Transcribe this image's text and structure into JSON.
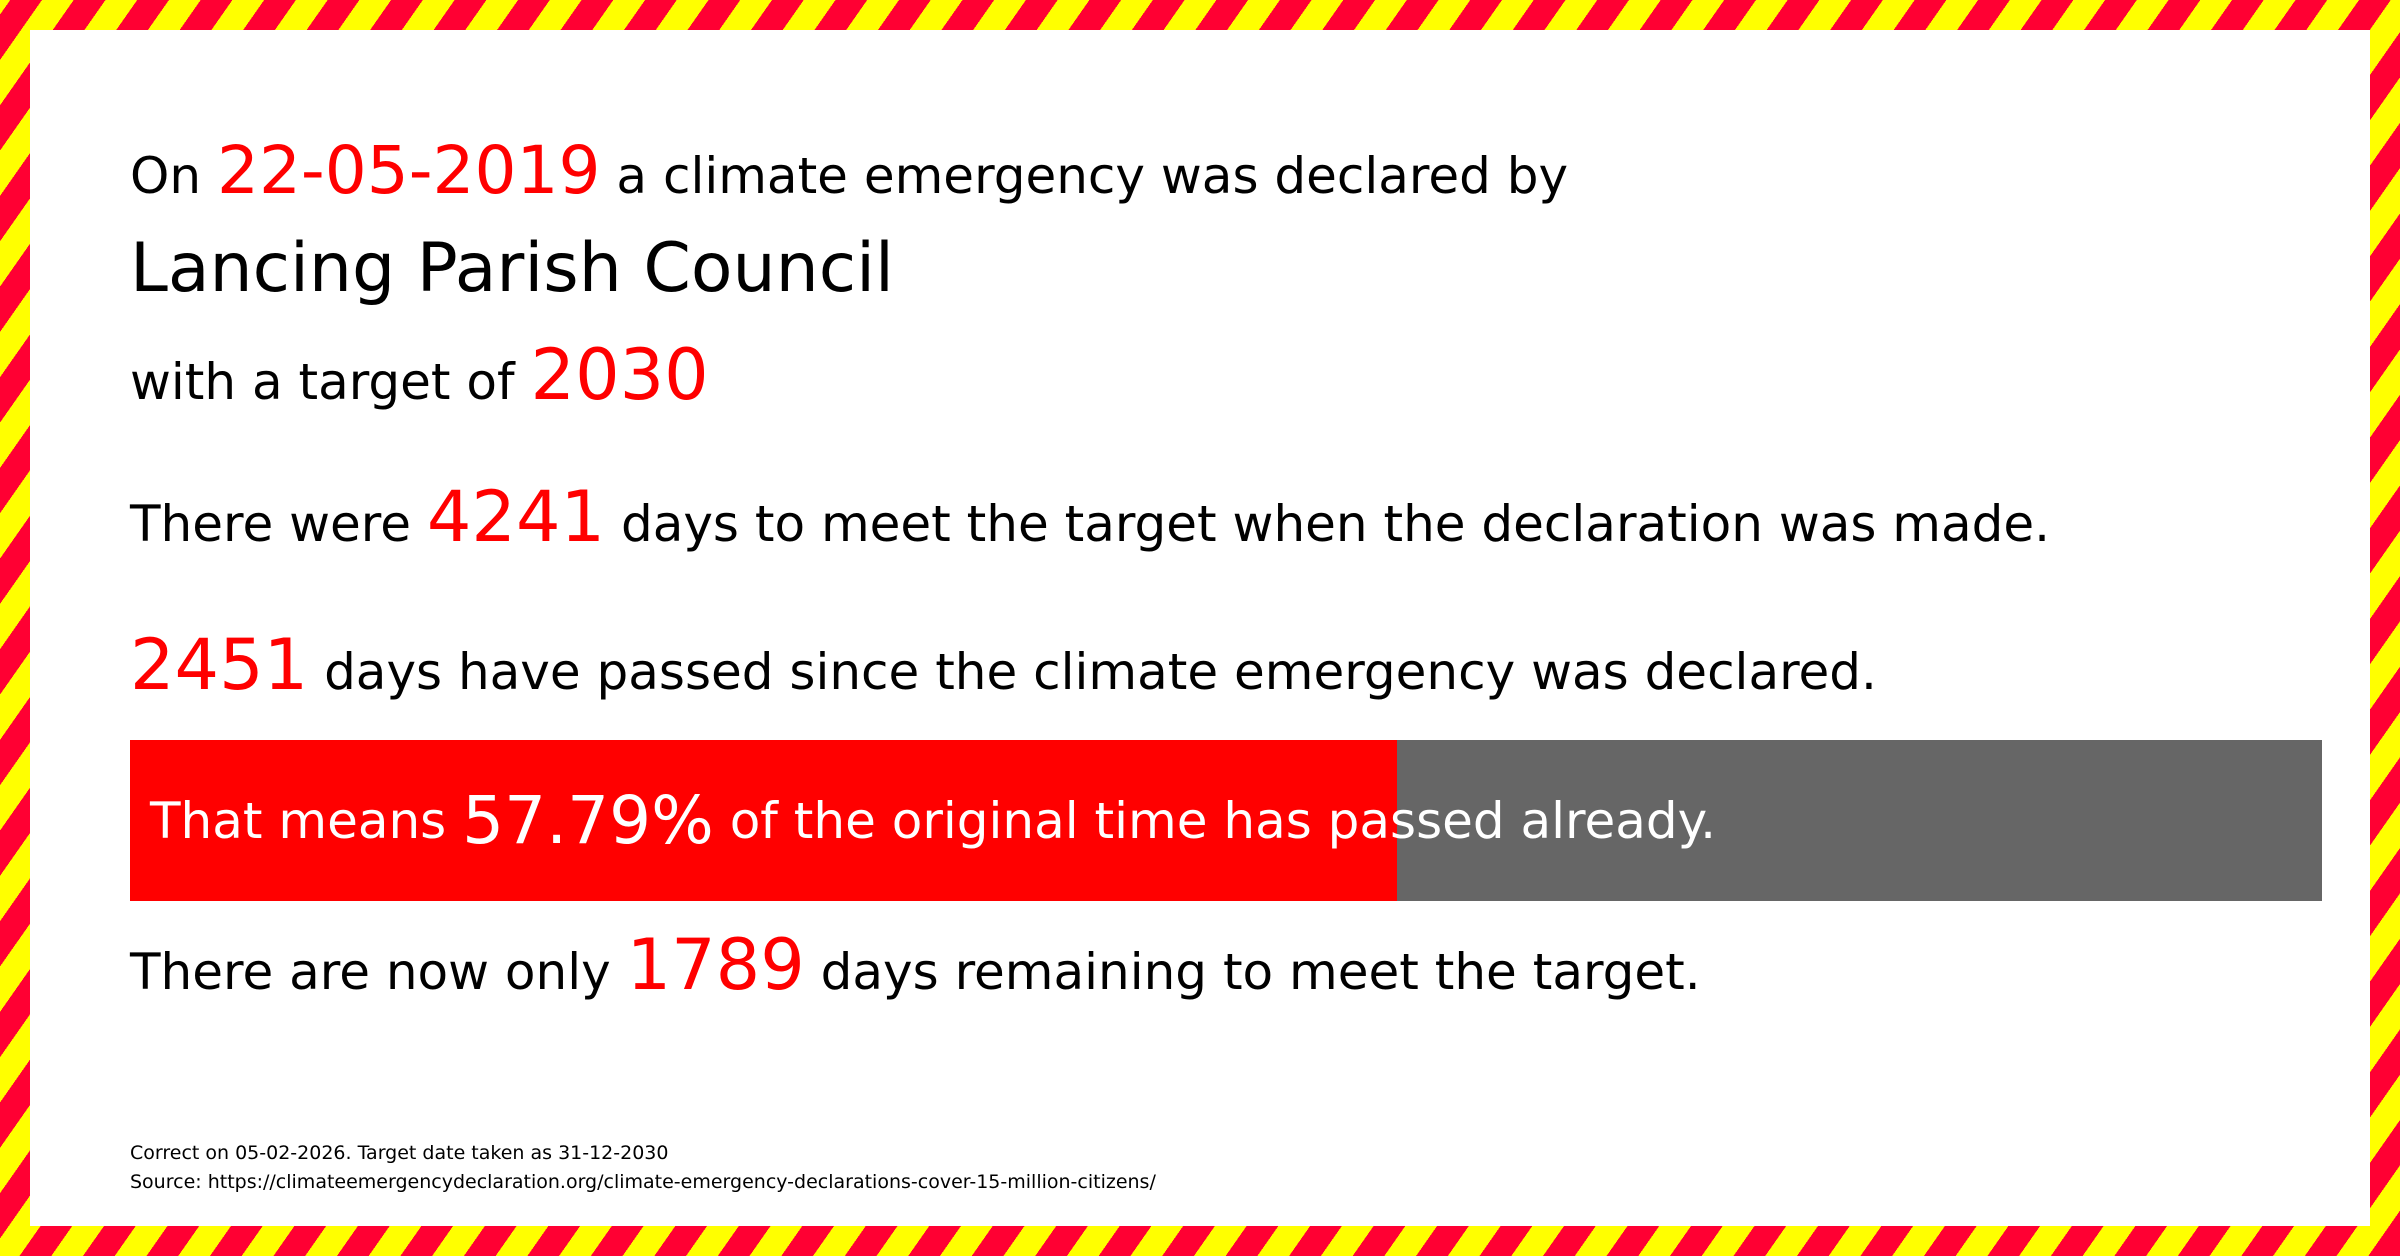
{
  "colors": {
    "accent": "#ff0000",
    "bar_remaining": "#666666",
    "stripe_red": "#ff0033",
    "stripe_yellow": "#ffff00"
  },
  "line1": {
    "prefix": "On",
    "date": "22-05-2019",
    "suffix": "a climate emergency was declared by"
  },
  "council": "Lancing Parish Council",
  "line3": {
    "prefix": "with a target of",
    "target": "2030"
  },
  "line4": {
    "prefix": "There were",
    "days": "4241",
    "suffix": "days to meet the target when the declaration was made."
  },
  "line5": {
    "days": "2451",
    "suffix": "days have passed since the climate emergency was declared."
  },
  "progress": {
    "percent_value": 57.79,
    "prefix": "That means",
    "percent": "57.79%",
    "suffix": "of the original time has passed already."
  },
  "line7": {
    "prefix": "There are now only",
    "days": "1789",
    "suffix": "days remaining to meet the target."
  },
  "footer": {
    "correct": "Correct on 05-02-2026. Target date taken as 31-12-2030",
    "source": "Source: https://climateemergencydeclaration.org/climate-emergency-declarations-cover-15-million-citizens/"
  }
}
